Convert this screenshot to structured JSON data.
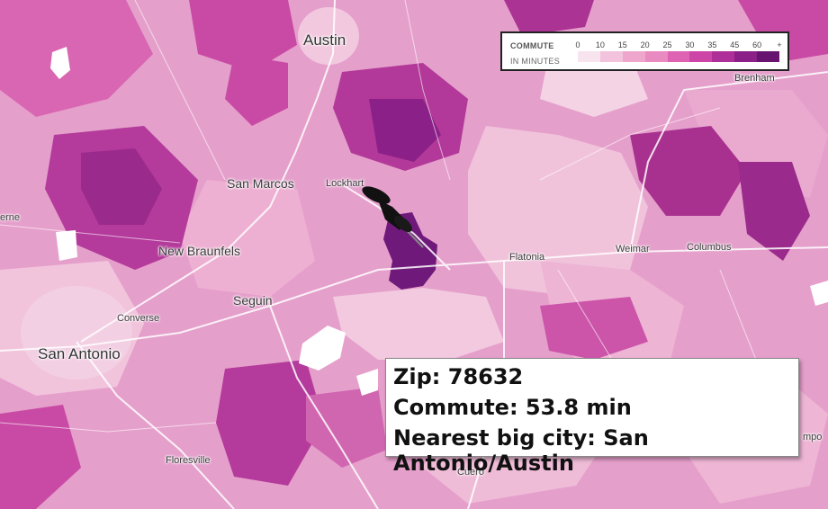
{
  "legend": {
    "title": "COMMUTE",
    "subtitle": "IN MINUTES",
    "ticks": [
      "0",
      "10",
      "15",
      "20",
      "25",
      "30",
      "35",
      "45",
      "60",
      "+"
    ],
    "colors": [
      "#f7e4ee",
      "#f3c2dc",
      "#eea6cc",
      "#e98ac0",
      "#de63b3",
      "#cd45a7",
      "#ae2f97",
      "#8a2088",
      "#661470"
    ]
  },
  "cities": {
    "austin": "Austin",
    "san_marcos": "San Marcos",
    "lockhart": "Lockhart",
    "new_braunfels": "New Braunfels",
    "seguin": "Seguin",
    "converse": "Converse",
    "san_antonio": "San Antonio",
    "flatonia": "Flatonia",
    "weimar": "Weimar",
    "columbus": "Columbus",
    "brenham": "Brenham",
    "floresville": "Floresville",
    "cuero": "Cuero",
    "erne_partial": "erne",
    "mpo_partial": "mpo"
  },
  "info": {
    "zip": "Zip: 78632",
    "commute": "Commute: 53.8 min",
    "nearest": "Nearest big city: San Antonio/Austin"
  },
  "highlight": {
    "zip": "78632",
    "commute_minutes": 53.8
  }
}
